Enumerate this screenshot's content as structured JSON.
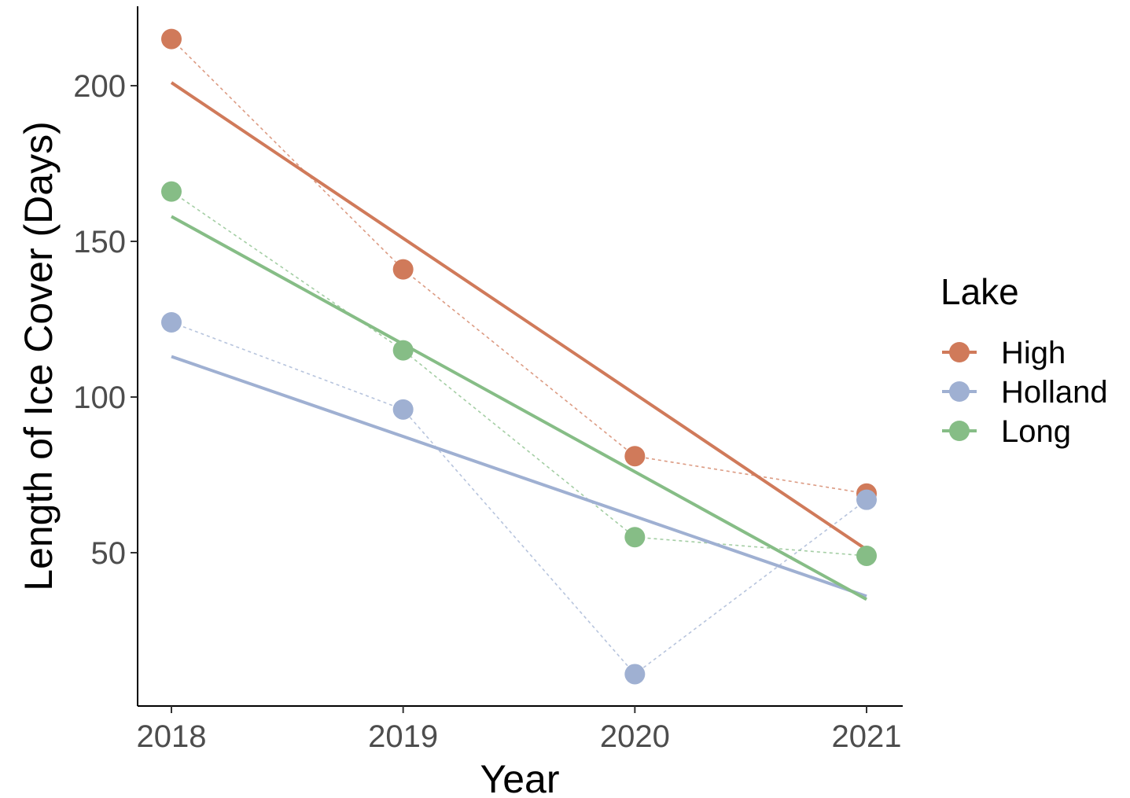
{
  "chart_data": {
    "type": "scatter",
    "xlabel": "Year",
    "ylabel": "Length of Ice Cover (Days)",
    "x": [
      2018,
      2019,
      2020,
      2021
    ],
    "x_tick_labels": [
      "2018",
      "2019",
      "2020",
      "2021"
    ],
    "y_ticks": [
      50,
      100,
      150,
      200
    ],
    "y_tick_labels": [
      "50",
      "100",
      "150",
      "200"
    ],
    "xlim": [
      2017.85,
      2021.15
    ],
    "ylim": [
      0,
      224
    ],
    "grid": false,
    "legend": {
      "title": "Lake",
      "position": "right"
    },
    "series": [
      {
        "name": "High",
        "color": "#d07a5a",
        "values": [
          215,
          141,
          81,
          69
        ],
        "fit": [
          201,
          151,
          101,
          51
        ]
      },
      {
        "name": "Holland",
        "color": "#9fb0d2",
        "values": [
          124,
          96,
          11,
          67
        ],
        "fit": [
          113,
          87,
          62,
          36
        ]
      },
      {
        "name": "Long",
        "color": "#86bd86",
        "values": [
          166,
          115,
          55,
          49
        ],
        "fit": [
          158,
          117,
          76,
          35
        ]
      }
    ]
  }
}
